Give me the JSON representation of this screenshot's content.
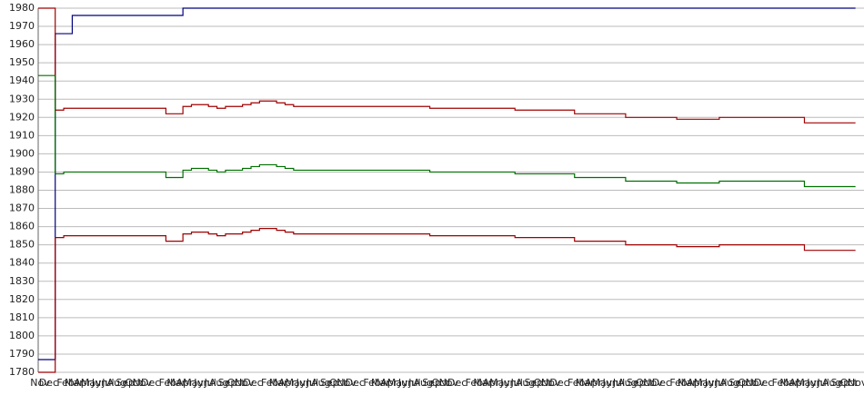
{
  "chart_data": {
    "type": "line",
    "categories": [
      "Nov",
      "Dec",
      null,
      "Feb",
      "Mar",
      "Apr",
      "May",
      "Jun",
      "Jul",
      "Aug",
      "Sep",
      "Oct",
      "Nov",
      "Dec",
      null,
      "Feb",
      "Mar",
      "Apr",
      "May",
      "Jun",
      "Jul",
      "Aug",
      "Sep",
      "Oct",
      "Nov",
      "Dec",
      null,
      "Feb",
      "Mar",
      "Apr",
      "May",
      "Jun",
      "Jul",
      "Aug",
      "Sep",
      "Oct",
      "Nov",
      "Dec",
      null,
      "Feb",
      "Mar",
      "Apr",
      "May",
      "Jun",
      "Jul",
      "Aug",
      "Sep",
      "Oct",
      "Nov",
      "Dec",
      null,
      "Feb",
      "Mar",
      "Apr",
      "May",
      "Jun",
      "Jul",
      "Aug",
      "Sep",
      "Oct",
      "Nov",
      "Dec",
      null,
      "Feb",
      "Mar",
      "Apr",
      "May",
      "Jun",
      "Jul",
      "Aug",
      "Sep",
      "Oct",
      "Nov",
      "Dec",
      null,
      "Feb",
      "Mar",
      "Apr",
      "May",
      "Jun",
      "Jul",
      "Aug",
      "Sep",
      "Oct",
      "Nov",
      "Dec",
      null,
      "Feb",
      "Mar",
      "Apr",
      "May",
      "Jun",
      "Jul",
      "Aug",
      "Sep",
      "Oct",
      "Nov"
    ],
    "series": [
      {
        "color": "#000080",
        "values": [
          1787,
          1787,
          1966,
          1966,
          1976,
          1976,
          1976,
          1976,
          1976,
          1976,
          1976,
          1976,
          1976,
          1976,
          1976,
          1976,
          1976,
          1980,
          1980,
          1980,
          1980,
          1980,
          1980,
          1980,
          1980,
          1980,
          1980,
          1980,
          1980,
          1980,
          1980,
          1980,
          1980,
          1980,
          1980,
          1980,
          1980,
          1980,
          1980,
          1980,
          1980,
          1980,
          1980,
          1980,
          1980,
          1980,
          1980,
          1980,
          1980,
          1980,
          1980,
          1980,
          1980,
          1980,
          1980,
          1980,
          1980,
          1980,
          1980,
          1980,
          1980,
          1980,
          1980,
          1980,
          1980,
          1980,
          1980,
          1980,
          1980,
          1980,
          1980,
          1980,
          1980,
          1980,
          1980,
          1980,
          1980,
          1980,
          1980,
          1980,
          1980,
          1980,
          1980,
          1980,
          1980,
          1980,
          1980,
          1980,
          1980,
          1980,
          1980,
          1980,
          1980,
          1980,
          1980,
          1980,
          1980
        ]
      },
      {
        "color": "#a00000",
        "values": [
          1980,
          1980,
          1924,
          1925,
          1925,
          1925,
          1925,
          1925,
          1925,
          1925,
          1925,
          1925,
          1925,
          1925,
          1925,
          1922,
          1922,
          1926,
          1927,
          1927,
          1926,
          1925,
          1926,
          1926,
          1927,
          1928,
          1929,
          1929,
          1928,
          1927,
          1926,
          1926,
          1926,
          1926,
          1926,
          1926,
          1926,
          1926,
          1926,
          1926,
          1926,
          1926,
          1926,
          1926,
          1926,
          1926,
          1925,
          1925,
          1925,
          1925,
          1925,
          1925,
          1925,
          1925,
          1925,
          1925,
          1924,
          1924,
          1924,
          1924,
          1924,
          1924,
          1924,
          1922,
          1922,
          1922,
          1922,
          1922,
          1922,
          1920,
          1920,
          1920,
          1920,
          1920,
          1920,
          1919,
          1919,
          1919,
          1919,
          1919,
          1920,
          1920,
          1920,
          1920,
          1920,
          1920,
          1920,
          1920,
          1920,
          1920,
          1917,
          1917,
          1917,
          1917,
          1917,
          1917,
          1917
        ]
      },
      {
        "color": "#007000",
        "values": [
          1943,
          1943,
          1889,
          1890,
          1890,
          1890,
          1890,
          1890,
          1890,
          1890,
          1890,
          1890,
          1890,
          1890,
          1890,
          1887,
          1887,
          1891,
          1892,
          1892,
          1891,
          1890,
          1891,
          1891,
          1892,
          1893,
          1894,
          1894,
          1893,
          1892,
          1891,
          1891,
          1891,
          1891,
          1891,
          1891,
          1891,
          1891,
          1891,
          1891,
          1891,
          1891,
          1891,
          1891,
          1891,
          1891,
          1890,
          1890,
          1890,
          1890,
          1890,
          1890,
          1890,
          1890,
          1890,
          1890,
          1889,
          1889,
          1889,
          1889,
          1889,
          1889,
          1889,
          1887,
          1887,
          1887,
          1887,
          1887,
          1887,
          1885,
          1885,
          1885,
          1885,
          1885,
          1885,
          1884,
          1884,
          1884,
          1884,
          1884,
          1885,
          1885,
          1885,
          1885,
          1885,
          1885,
          1885,
          1885,
          1885,
          1885,
          1882,
          1882,
          1882,
          1882,
          1882,
          1882,
          1882
        ]
      },
      {
        "color": "#a00000",
        "values": [
          1780,
          1780,
          1854,
          1855,
          1855,
          1855,
          1855,
          1855,
          1855,
          1855,
          1855,
          1855,
          1855,
          1855,
          1855,
          1852,
          1852,
          1856,
          1857,
          1857,
          1856,
          1855,
          1856,
          1856,
          1857,
          1858,
          1859,
          1859,
          1858,
          1857,
          1856,
          1856,
          1856,
          1856,
          1856,
          1856,
          1856,
          1856,
          1856,
          1856,
          1856,
          1856,
          1856,
          1856,
          1856,
          1856,
          1855,
          1855,
          1855,
          1855,
          1855,
          1855,
          1855,
          1855,
          1855,
          1855,
          1854,
          1854,
          1854,
          1854,
          1854,
          1854,
          1854,
          1852,
          1852,
          1852,
          1852,
          1852,
          1852,
          1850,
          1850,
          1850,
          1850,
          1850,
          1850,
          1849,
          1849,
          1849,
          1849,
          1849,
          1850,
          1850,
          1850,
          1850,
          1850,
          1850,
          1850,
          1850,
          1850,
          1850,
          1847,
          1847,
          1847,
          1847,
          1847,
          1847,
          1847
        ]
      }
    ],
    "ylim": [
      1780,
      1980
    ],
    "yticks": [
      1780,
      1790,
      1800,
      1810,
      1820,
      1830,
      1840,
      1850,
      1860,
      1870,
      1880,
      1890,
      1900,
      1910,
      1920,
      1930,
      1940,
      1950,
      1960,
      1970,
      1980
    ],
    "grid": true
  }
}
